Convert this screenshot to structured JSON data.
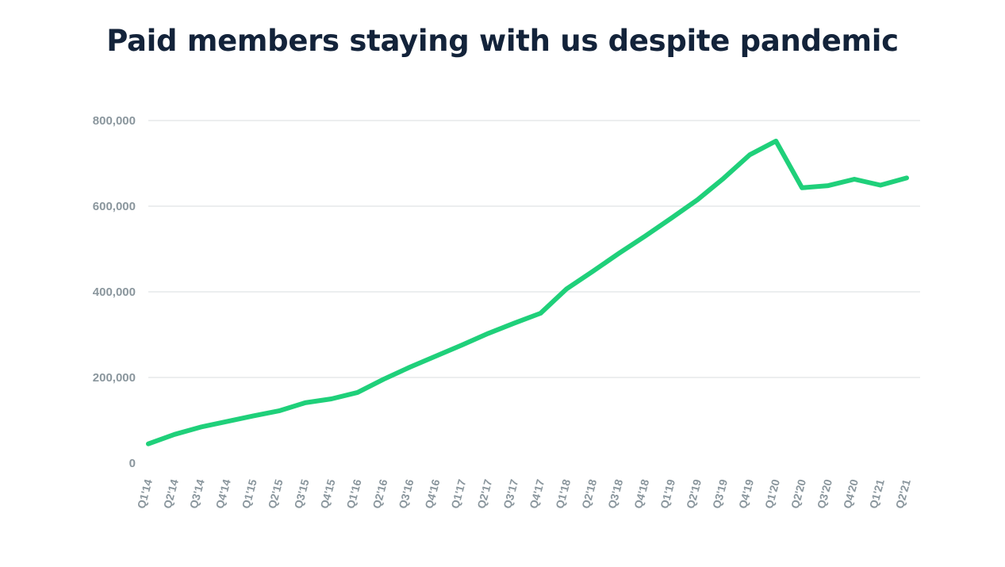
{
  "chart_data": {
    "type": "line",
    "title": "Paid members staying with us despite pandemic",
    "xlabel": "",
    "ylabel": "",
    "ylim": [
      0,
      800000
    ],
    "y_ticks": [
      0,
      200000,
      400000,
      600000,
      800000
    ],
    "y_tick_labels": [
      "0",
      "200,000",
      "400,000",
      "600,000",
      "800,000"
    ],
    "grid": true,
    "legend": "none",
    "line_color": "#1fd07a",
    "categories": [
      "Q1'14",
      "Q2'14",
      "Q3'14",
      "Q4'14",
      "Q1'15",
      "Q2'15",
      "Q3'15",
      "Q4'15",
      "Q1'16",
      "Q2'16",
      "Q3'16",
      "Q4'16",
      "Q1'17",
      "Q2'17",
      "Q3'17",
      "Q4'17",
      "Q1'18",
      "Q2'18",
      "Q3'18",
      "Q4'18",
      "Q1'19",
      "Q2'19",
      "Q3'19",
      "Q4'19",
      "Q1'20",
      "Q2'20",
      "Q3'20",
      "Q4'20",
      "Q1'21",
      "Q2'21"
    ],
    "x_tick_labels": [
      "Q1'14",
      "Q2'14",
      "Q3'14",
      "Q4'14",
      "Q1'15",
      "Q2'15",
      "Q3'15",
      "Q4'15",
      "Q1'16",
      "Q2'16",
      "Q3'16",
      "Q4'16",
      "Q1'17",
      "Q2'17",
      "Q3'17",
      "Q4'17",
      "Q1'18",
      "Q2'18",
      "Q3'18",
      "Q4'18",
      "Q1'19",
      "Q2'19",
      "Q3'19",
      "Q4'19",
      "Q1'20",
      "Q2'20",
      "Q3'20",
      "Q4'20",
      "Q1'21",
      "Q2'21"
    ],
    "series": [
      {
        "values": [
          45000,
          67000,
          84000,
          97000,
          110000,
          122000,
          141000,
          150000,
          165000,
          196000,
          224000,
          250000,
          276000,
          303000,
          327000,
          350000,
          407000,
          448000,
          490000,
          530000,
          572000,
          615000,
          665000,
          720000,
          752000,
          643000,
          648000,
          663000,
          649000,
          666000
        ]
      }
    ]
  }
}
